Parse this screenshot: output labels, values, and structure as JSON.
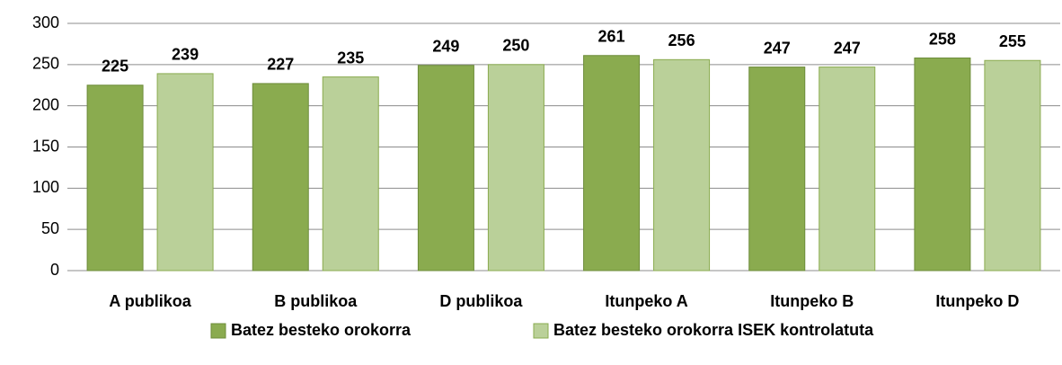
{
  "chart_data": {
    "type": "bar",
    "categories": [
      "A publikoa",
      "B publikoa",
      "D publikoa",
      "Itunpeko A",
      "Itunpeko B",
      "Itunpeko D"
    ],
    "series": [
      {
        "name": "Batez besteko orokorra",
        "color": "#8aab4f",
        "values": [
          225,
          227,
          249,
          261,
          247,
          258
        ]
      },
      {
        "name": "Batez besteko orokorra ISEK kontrolatuta",
        "color": "#bad099",
        "values": [
          239,
          235,
          250,
          256,
          247,
          255
        ]
      }
    ],
    "ylim": [
      0,
      300
    ],
    "yticks": [
      0,
      50,
      100,
      150,
      200,
      250,
      300
    ],
    "grid": true,
    "legend": "bottom"
  }
}
